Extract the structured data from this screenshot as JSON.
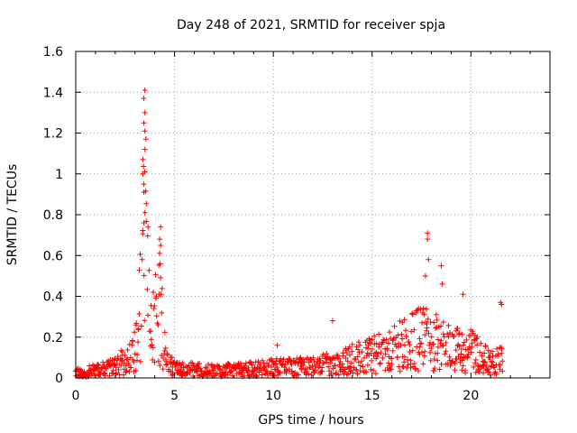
{
  "chart_data": {
    "type": "scatter",
    "title": "Day 248 of 2021, SRMTID for receiver spja",
    "xlabel": "GPS time / hours",
    "ylabel": "SRMTID / TECUs",
    "xlim": [
      0,
      24
    ],
    "ylim": [
      0,
      1.6
    ],
    "xticks": [
      "0",
      "5",
      "10",
      "15",
      "20"
    ],
    "yticks": [
      "0",
      "0.2",
      "0.4",
      "0.6",
      "0.8",
      "1",
      "1.2",
      "1.4",
      "1.6"
    ],
    "grid": true,
    "marker": "+",
    "color": "#ff0000",
    "series": [
      {
        "name": "SRMTID",
        "profile_hours": [
          0,
          1,
          2,
          2.8,
          3.2,
          3.5,
          3.8,
          4.2,
          4.6,
          5,
          7,
          9,
          10,
          12,
          14,
          16,
          17.5,
          18,
          19,
          20,
          21,
          21.6
        ],
        "profile_median": [
          0.03,
          0.04,
          0.06,
          0.12,
          0.3,
          0.8,
          0.25,
          0.4,
          0.1,
          0.05,
          0.04,
          0.05,
          0.06,
          0.06,
          0.1,
          0.15,
          0.22,
          0.2,
          0.15,
          0.15,
          0.08,
          0.1
        ],
        "peaks": [
          {
            "x": 3.5,
            "y": 1.41
          },
          {
            "x": 3.45,
            "y": 1.37
          },
          {
            "x": 3.5,
            "y": 1.3
          },
          {
            "x": 3.45,
            "y": 1.25
          },
          {
            "x": 3.5,
            "y": 1.21
          },
          {
            "x": 3.55,
            "y": 1.17
          },
          {
            "x": 3.5,
            "y": 1.12
          },
          {
            "x": 3.4,
            "y": 1.07
          },
          {
            "x": 3.4,
            "y": 1.0
          },
          {
            "x": 3.45,
            "y": 0.95
          },
          {
            "x": 3.45,
            "y": 0.91
          },
          {
            "x": 3.5,
            "y": 0.81
          },
          {
            "x": 3.45,
            "y": 0.76
          },
          {
            "x": 4.3,
            "y": 0.74
          },
          {
            "x": 4.25,
            "y": 0.68
          },
          {
            "x": 4.3,
            "y": 0.65
          },
          {
            "x": 17.8,
            "y": 0.71
          },
          {
            "x": 17.8,
            "y": 0.68
          },
          {
            "x": 17.85,
            "y": 0.58
          },
          {
            "x": 18.5,
            "y": 0.55
          },
          {
            "x": 17.7,
            "y": 0.5
          },
          {
            "x": 18.55,
            "y": 0.46
          },
          {
            "x": 19.6,
            "y": 0.41
          },
          {
            "x": 21.5,
            "y": 0.37
          },
          {
            "x": 21.55,
            "y": 0.36
          },
          {
            "x": 13,
            "y": 0.28
          },
          {
            "x": 10.2,
            "y": 0.16
          }
        ]
      }
    ]
  }
}
